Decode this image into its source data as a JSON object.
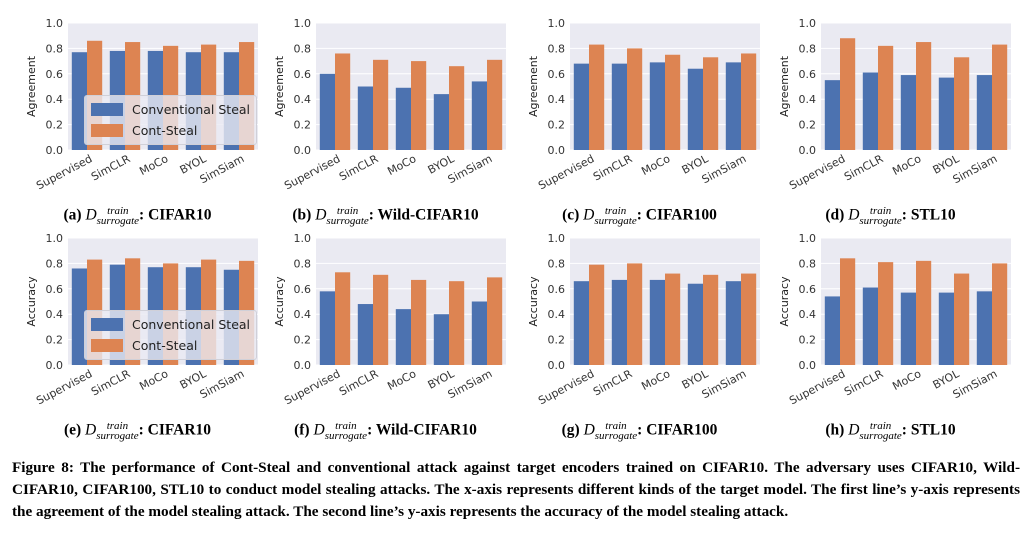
{
  "colors": {
    "conventional": "#4c72b0",
    "cont_steal": "#dd8452",
    "plot_bg": "#eaeaf2",
    "grid": "#ffffff"
  },
  "legend": {
    "conventional": "Conventional Steal",
    "cont_steal": "Cont-Steal"
  },
  "caption": "Figure 8: The performance of Cont-Steal and conventional attack against target encoders trained on CIFAR10. The adversary uses CIFAR10, Wild-CIFAR10, CIFAR100, STL10 to conduct model stealing attacks. The x-axis represents different kinds of the target model. The first line’s y-axis represents the agreement of the model stealing attack. The second line’s y-axis represents the accuracy of the model stealing attack.",
  "chart_data": [
    {
      "type": "bar",
      "id": "a",
      "label": "(a)",
      "dataset": "CIFAR10",
      "ylabel": "Agreement",
      "ylim": [
        0,
        1.0
      ],
      "yticks": [
        "0.0",
        "0.2",
        "0.4",
        "0.6",
        "0.8",
        "1.0"
      ],
      "categories": [
        "Supervised",
        "SimCLR",
        "MoCo",
        "BYOL",
        "SimSiam"
      ],
      "series": [
        {
          "name": "Conventional Steal",
          "values": [
            0.77,
            0.78,
            0.78,
            0.77,
            0.77
          ]
        },
        {
          "name": "Cont-Steal",
          "values": [
            0.86,
            0.85,
            0.82,
            0.83,
            0.85
          ]
        }
      ],
      "legend": true
    },
    {
      "type": "bar",
      "id": "b",
      "label": "(b)",
      "dataset": "Wild-CIFAR10",
      "ylabel": "Agreement",
      "ylim": [
        0,
        1.0
      ],
      "yticks": [
        "0.0",
        "0.2",
        "0.4",
        "0.6",
        "0.8",
        "1.0"
      ],
      "categories": [
        "Supervised",
        "SimCLR",
        "MoCo",
        "BYOL",
        "SimSiam"
      ],
      "series": [
        {
          "name": "Conventional Steal",
          "values": [
            0.6,
            0.5,
            0.49,
            0.44,
            0.54
          ]
        },
        {
          "name": "Cont-Steal",
          "values": [
            0.76,
            0.71,
            0.7,
            0.66,
            0.71
          ]
        }
      ],
      "legend": false
    },
    {
      "type": "bar",
      "id": "c",
      "label": "(c)",
      "dataset": "CIFAR100",
      "ylabel": "Agreement",
      "ylim": [
        0,
        1.0
      ],
      "yticks": [
        "0.0",
        "0.2",
        "0.4",
        "0.6",
        "0.8",
        "1.0"
      ],
      "categories": [
        "Supervised",
        "SimCLR",
        "MoCo",
        "BYOL",
        "SimSiam"
      ],
      "series": [
        {
          "name": "Conventional Steal",
          "values": [
            0.68,
            0.68,
            0.69,
            0.64,
            0.69
          ]
        },
        {
          "name": "Cont-Steal",
          "values": [
            0.83,
            0.8,
            0.75,
            0.73,
            0.76
          ]
        }
      ],
      "legend": false
    },
    {
      "type": "bar",
      "id": "d",
      "label": "(d)",
      "dataset": "STL10",
      "ylabel": "Agreement",
      "ylim": [
        0,
        1.0
      ],
      "yticks": [
        "0.0",
        "0.2",
        "0.4",
        "0.6",
        "0.8",
        "1.0"
      ],
      "categories": [
        "Supervised",
        "SimCLR",
        "MoCo",
        "BYOL",
        "SimSiam"
      ],
      "series": [
        {
          "name": "Conventional Steal",
          "values": [
            0.55,
            0.61,
            0.59,
            0.57,
            0.59
          ]
        },
        {
          "name": "Cont-Steal",
          "values": [
            0.88,
            0.82,
            0.85,
            0.73,
            0.83
          ]
        }
      ],
      "legend": false
    },
    {
      "type": "bar",
      "id": "e",
      "label": "(e)",
      "dataset": "CIFAR10",
      "ylabel": "Accuracy",
      "ylim": [
        0,
        1.0
      ],
      "yticks": [
        "0.0",
        "0.2",
        "0.4",
        "0.6",
        "0.8",
        "1.0"
      ],
      "categories": [
        "Supervised",
        "SimCLR",
        "MoCo",
        "BYOL",
        "SimSiam"
      ],
      "series": [
        {
          "name": "Conventional Steal",
          "values": [
            0.76,
            0.79,
            0.77,
            0.77,
            0.75
          ]
        },
        {
          "name": "Cont-Steal",
          "values": [
            0.83,
            0.84,
            0.8,
            0.83,
            0.82
          ]
        }
      ],
      "legend": true
    },
    {
      "type": "bar",
      "id": "f",
      "label": "(f)",
      "dataset": "Wild-CIFAR10",
      "ylabel": "Accuracy",
      "ylim": [
        0,
        1.0
      ],
      "yticks": [
        "0.0",
        "0.2",
        "0.4",
        "0.6",
        "0.8",
        "1.0"
      ],
      "categories": [
        "Supervised",
        "SimCLR",
        "MoCo",
        "BYOL",
        "SimSiam"
      ],
      "series": [
        {
          "name": "Conventional Steal",
          "values": [
            0.58,
            0.48,
            0.44,
            0.4,
            0.5
          ]
        },
        {
          "name": "Cont-Steal",
          "values": [
            0.73,
            0.71,
            0.67,
            0.66,
            0.69
          ]
        }
      ],
      "legend": false
    },
    {
      "type": "bar",
      "id": "g",
      "label": "(g)",
      "dataset": "CIFAR100",
      "ylabel": "Accuracy",
      "ylim": [
        0,
        1.0
      ],
      "yticks": [
        "0.0",
        "0.2",
        "0.4",
        "0.6",
        "0.8",
        "1.0"
      ],
      "categories": [
        "Supervised",
        "SimCLR",
        "MoCo",
        "BYOL",
        "SimSiam"
      ],
      "series": [
        {
          "name": "Conventional Steal",
          "values": [
            0.66,
            0.67,
            0.67,
            0.64,
            0.66
          ]
        },
        {
          "name": "Cont-Steal",
          "values": [
            0.79,
            0.8,
            0.72,
            0.71,
            0.72
          ]
        }
      ],
      "legend": false
    },
    {
      "type": "bar",
      "id": "h",
      "label": "(h)",
      "dataset": "STL10",
      "ylabel": "Accuracy",
      "ylim": [
        0,
        1.0
      ],
      "yticks": [
        "0.0",
        "0.2",
        "0.4",
        "0.6",
        "0.8",
        "1.0"
      ],
      "categories": [
        "Supervised",
        "SimCLR",
        "MoCo",
        "BYOL",
        "SimSiam"
      ],
      "series": [
        {
          "name": "Conventional Steal",
          "values": [
            0.54,
            0.61,
            0.57,
            0.57,
            0.58
          ]
        },
        {
          "name": "Cont-Steal",
          "values": [
            0.84,
            0.81,
            0.82,
            0.72,
            0.8
          ]
        }
      ],
      "legend": false
    }
  ],
  "subcaption_var": {
    "base": "D",
    "sup": "train",
    "sub": "surrogate"
  }
}
